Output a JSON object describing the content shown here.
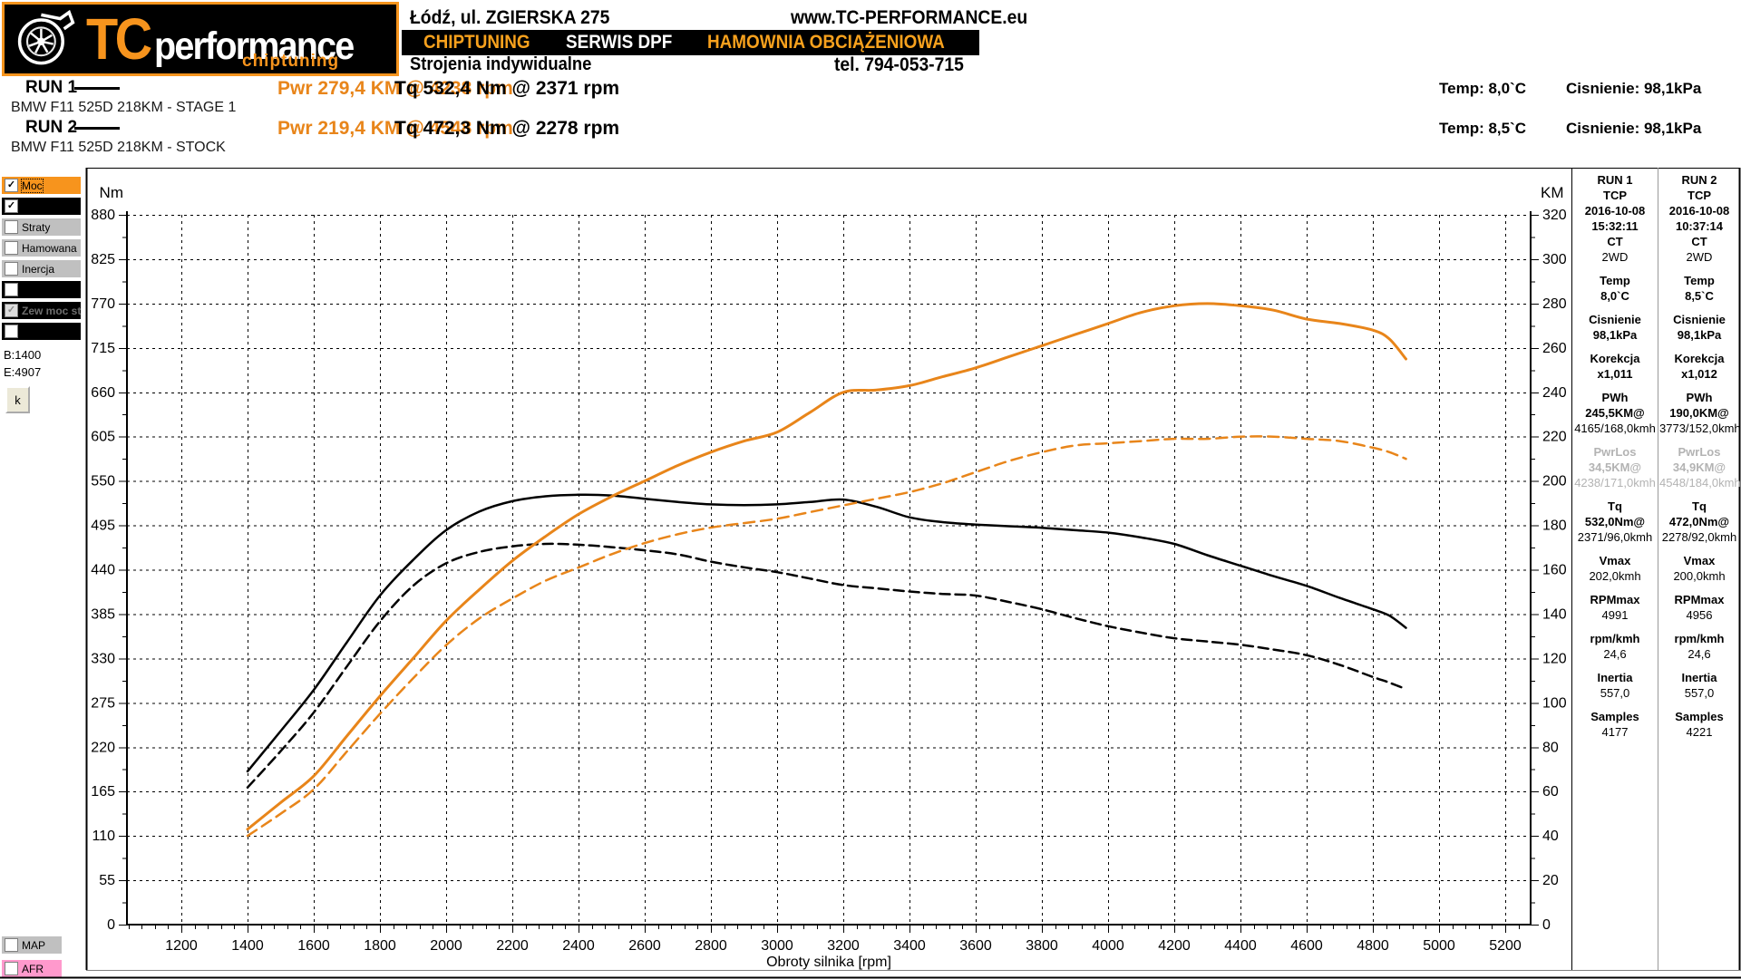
{
  "header": {
    "address": "Łódź, ul. ZGIERSKA 275",
    "website": "www.TC-PERFORMANCE.eu",
    "banner_items": [
      "CHIPTUNING",
      "SERWIS DPF",
      "HAMOWNIA OBCIĄŻENIOWA"
    ],
    "banner_colors": [
      "#f7a11d",
      "#ffffff",
      "#f7a11d"
    ],
    "tagline": "Strojenia indywidualne",
    "phone": "tel. 794-053-715",
    "logo": {
      "tc": "TC",
      "performance": "performance",
      "chiptuning": "chiptuning"
    }
  },
  "runs": [
    {
      "name": "RUN 1",
      "pwr": "Pwr  279,4 KM @ 4238 rpm",
      "tq": "Tq 532,4 Nm @ 2371 rpm",
      "temp": "Temp: 8,0`C",
      "pressure": "Cisnienie: 98,1kPa",
      "model": "BMW F11 525D 218KM - STAGE 1"
    },
    {
      "name": "RUN 2",
      "pwr": "Pwr  219,4 KM @ 4548 rpm",
      "tq": "Tq 472,3 Nm @ 2278 rpm",
      "temp": "Temp: 8,5`C",
      "pressure": "Cisnienie: 98,1kPa",
      "model": "BMW F11 525D 218KM - STOCK"
    }
  ],
  "sidebar": {
    "rows": [
      {
        "label": "Moc",
        "bg": "#f7941d",
        "fg": "#000",
        "checked": true,
        "disabled": false,
        "focus": true,
        "bold": false
      },
      {
        "label": "",
        "bg": "#000000",
        "fg": "#fff",
        "checked": true,
        "disabled": false,
        "focus": false,
        "bold": false
      },
      {
        "label": "Straty",
        "bg": "#c0c0c0",
        "fg": "#000",
        "checked": false,
        "disabled": false,
        "focus": false,
        "bold": false
      },
      {
        "label": "Hamowana",
        "bg": "#c0c0c0",
        "fg": "#000",
        "checked": false,
        "disabled": false,
        "focus": false,
        "bold": false
      },
      {
        "label": "Inercja",
        "bg": "#c0c0c0",
        "fg": "#000",
        "checked": false,
        "disabled": false,
        "focus": false,
        "bold": false
      },
      {
        "label": "",
        "bg": "#000000",
        "fg": "#fff",
        "checked": false,
        "disabled": false,
        "focus": false,
        "bold": false
      },
      {
        "label": "Zew moc str",
        "bg": "#000000",
        "fg": "#6e6e6e",
        "checked": true,
        "disabled": true,
        "focus": false,
        "bold": true
      },
      {
        "label": "",
        "bg": "#000000",
        "fg": "#fff",
        "checked": false,
        "disabled": false,
        "focus": false,
        "bold": false
      }
    ],
    "begin_label": "B:1400",
    "end_label": "E:4907",
    "k_button": "k",
    "bottom_rows": [
      {
        "label": "MAP",
        "bg": "#c0c0c0",
        "fg": "#000",
        "checked": false
      },
      {
        "label": "AFR",
        "bg": "#ff99cc",
        "fg": "#000",
        "checked": false
      }
    ]
  },
  "panel": {
    "columns": [
      {
        "lines": [
          {
            "t": "RUN 1",
            "b": 1
          },
          {
            "t": "TCP",
            "b": 1
          },
          {
            "t": "2016-10-08",
            "b": 1
          },
          {
            "t": "15:32:11",
            "b": 1
          },
          {
            "t": "CT",
            "b": 1
          },
          {
            "t": "2WD"
          },
          {
            "t": "Temp",
            "b": 1,
            "gap": 1
          },
          {
            "t": "8,0`C",
            "b": 1
          },
          {
            "t": "Cisnienie",
            "b": 1,
            "gap": 1
          },
          {
            "t": "98,1kPa",
            "b": 1
          },
          {
            "t": "Korekcja",
            "b": 1,
            "gap": 1
          },
          {
            "t": "x1,011",
            "b": 1
          },
          {
            "t": "PWh",
            "b": 1,
            "gap": 1
          },
          {
            "t": "245,5KM@",
            "b": 1
          },
          {
            "t": "4165/168,0kmh"
          },
          {
            "t": "PwrLos",
            "b": 1,
            "g": 1,
            "gap": 1
          },
          {
            "t": "34,5KM@",
            "b": 1,
            "g": 1
          },
          {
            "t": "4238/171,0kmh",
            "g": 1
          },
          {
            "t": "Tq",
            "b": 1,
            "gap": 1
          },
          {
            "t": "532,0Nm@",
            "b": 1
          },
          {
            "t": "2371/96,0kmh"
          },
          {
            "t": "Vmax",
            "b": 1,
            "gap": 1
          },
          {
            "t": "202,0kmh"
          },
          {
            "t": "RPMmax",
            "b": 1,
            "gap": 1
          },
          {
            "t": "4991"
          },
          {
            "t": "rpm/kmh",
            "b": 1,
            "gap": 1
          },
          {
            "t": "24,6"
          },
          {
            "t": "Inertia",
            "b": 1,
            "gap": 1
          },
          {
            "t": "557,0"
          },
          {
            "t": "Samples",
            "b": 1,
            "gap": 1
          },
          {
            "t": "4177"
          }
        ]
      },
      {
        "lines": [
          {
            "t": "RUN 2",
            "b": 1
          },
          {
            "t": "TCP",
            "b": 1
          },
          {
            "t": "2016-10-08",
            "b": 1
          },
          {
            "t": "10:37:14",
            "b": 1
          },
          {
            "t": "CT",
            "b": 1
          },
          {
            "t": "2WD"
          },
          {
            "t": "Temp",
            "b": 1,
            "gap": 1
          },
          {
            "t": "8,5`C",
            "b": 1
          },
          {
            "t": "Cisnienie",
            "b": 1,
            "gap": 1
          },
          {
            "t": "98,1kPa",
            "b": 1
          },
          {
            "t": "Korekcja",
            "b": 1,
            "gap": 1
          },
          {
            "t": "x1,012",
            "b": 1
          },
          {
            "t": "PWh",
            "b": 1,
            "gap": 1
          },
          {
            "t": "190,0KM@",
            "b": 1
          },
          {
            "t": "3773/152,0kmh"
          },
          {
            "t": "PwrLos",
            "b": 1,
            "g": 1,
            "gap": 1
          },
          {
            "t": "34,9KM@",
            "b": 1,
            "g": 1
          },
          {
            "t": "4548/184,0kmh",
            "g": 1
          },
          {
            "t": "Tq",
            "b": 1,
            "gap": 1
          },
          {
            "t": "472,0Nm@",
            "b": 1
          },
          {
            "t": "2278/92,0kmh"
          },
          {
            "t": "Vmax",
            "b": 1,
            "gap": 1
          },
          {
            "t": "200,0kmh"
          },
          {
            "t": "RPMmax",
            "b": 1,
            "gap": 1
          },
          {
            "t": "4956"
          },
          {
            "t": "rpm/kmh",
            "b": 1,
            "gap": 1
          },
          {
            "t": "24,6"
          },
          {
            "t": "Inertia",
            "b": 1,
            "gap": 1
          },
          {
            "t": "557,0"
          },
          {
            "t": "Samples",
            "b": 1,
            "gap": 1
          },
          {
            "t": "4221"
          }
        ]
      }
    ]
  },
  "chart_data": {
    "type": "line",
    "xlabel": "Obroty silnika [rpm]",
    "y_left_label": "Nm",
    "y_right_label": "KM",
    "x_ticks": [
      1200,
      1400,
      1600,
      1800,
      2000,
      2200,
      2400,
      2600,
      2800,
      3000,
      3200,
      3400,
      3600,
      3800,
      4000,
      4200,
      4400,
      4600,
      4800,
      5000,
      5200
    ],
    "nm_ticks": [
      0,
      55,
      110,
      165,
      220,
      275,
      330,
      385,
      440,
      495,
      550,
      605,
      660,
      715,
      770,
      825,
      880
    ],
    "km_ticks": [
      0,
      20,
      40,
      60,
      80,
      100,
      120,
      140,
      160,
      180,
      200,
      220,
      240,
      260,
      280,
      300,
      320
    ],
    "nm_range": [
      0,
      880
    ],
    "km_range": [
      0,
      320
    ],
    "grid": true,
    "series": [
      {
        "name": "RUN 1 Moc (KM)",
        "axis": "km",
        "color": "#e8851a",
        "dash": "",
        "width": 3,
        "points": [
          [
            1400,
            43
          ],
          [
            1500,
            55
          ],
          [
            1600,
            67
          ],
          [
            1700,
            85
          ],
          [
            1800,
            103
          ],
          [
            1900,
            120
          ],
          [
            2000,
            137
          ],
          [
            2100,
            151
          ],
          [
            2200,
            164
          ],
          [
            2300,
            175
          ],
          [
            2400,
            185
          ],
          [
            2500,
            193
          ],
          [
            2600,
            200
          ],
          [
            2700,
            207
          ],
          [
            2800,
            213
          ],
          [
            2900,
            218
          ],
          [
            3000,
            222
          ],
          [
            3100,
            231
          ],
          [
            3200,
            240
          ],
          [
            3300,
            241
          ],
          [
            3400,
            243
          ],
          [
            3500,
            247
          ],
          [
            3600,
            251
          ],
          [
            3700,
            256
          ],
          [
            3800,
            261
          ],
          [
            3900,
            266
          ],
          [
            4000,
            271
          ],
          [
            4100,
            276
          ],
          [
            4200,
            279
          ],
          [
            4300,
            280
          ],
          [
            4400,
            279
          ],
          [
            4500,
            277
          ],
          [
            4600,
            273
          ],
          [
            4700,
            271
          ],
          [
            4800,
            268
          ],
          [
            4850,
            264
          ],
          [
            4900,
            255
          ]
        ]
      },
      {
        "name": "RUN 2 Moc (KM)",
        "axis": "km",
        "color": "#e8851a",
        "dash": "12 7",
        "width": 2.5,
        "points": [
          [
            1400,
            40
          ],
          [
            1500,
            50
          ],
          [
            1600,
            61
          ],
          [
            1700,
            78
          ],
          [
            1800,
            95
          ],
          [
            1900,
            111
          ],
          [
            2000,
            126
          ],
          [
            2100,
            138
          ],
          [
            2200,
            147
          ],
          [
            2300,
            155
          ],
          [
            2400,
            161
          ],
          [
            2500,
            167
          ],
          [
            2600,
            172
          ],
          [
            2700,
            176
          ],
          [
            2800,
            179
          ],
          [
            2900,
            181
          ],
          [
            3000,
            183
          ],
          [
            3100,
            186
          ],
          [
            3200,
            189
          ],
          [
            3300,
            192
          ],
          [
            3400,
            195
          ],
          [
            3500,
            199
          ],
          [
            3600,
            204
          ],
          [
            3700,
            209
          ],
          [
            3800,
            213
          ],
          [
            3900,
            216
          ],
          [
            4000,
            217
          ],
          [
            4100,
            218
          ],
          [
            4200,
            219
          ],
          [
            4300,
            219
          ],
          [
            4400,
            220
          ],
          [
            4500,
            220
          ],
          [
            4600,
            219
          ],
          [
            4700,
            218
          ],
          [
            4800,
            215
          ],
          [
            4850,
            213
          ],
          [
            4900,
            210
          ]
        ]
      },
      {
        "name": "RUN 1 Moment (Nm)",
        "axis": "nm",
        "color": "#000000",
        "dash": "",
        "width": 2.5,
        "points": [
          [
            1400,
            190
          ],
          [
            1500,
            240
          ],
          [
            1600,
            291
          ],
          [
            1700,
            350
          ],
          [
            1800,
            408
          ],
          [
            1900,
            452
          ],
          [
            2000,
            489
          ],
          [
            2100,
            512
          ],
          [
            2200,
            525
          ],
          [
            2300,
            531
          ],
          [
            2400,
            533
          ],
          [
            2500,
            532
          ],
          [
            2600,
            528
          ],
          [
            2700,
            524
          ],
          [
            2800,
            521
          ],
          [
            2900,
            520
          ],
          [
            3000,
            521
          ],
          [
            3100,
            524
          ],
          [
            3200,
            527
          ],
          [
            3300,
            518
          ],
          [
            3400,
            505
          ],
          [
            3500,
            499
          ],
          [
            3600,
            496
          ],
          [
            3700,
            494
          ],
          [
            3800,
            492
          ],
          [
            3900,
            489
          ],
          [
            4000,
            486
          ],
          [
            4100,
            480
          ],
          [
            4200,
            472
          ],
          [
            4300,
            458
          ],
          [
            4400,
            445
          ],
          [
            4500,
            432
          ],
          [
            4600,
            420
          ],
          [
            4700,
            405
          ],
          [
            4800,
            391
          ],
          [
            4850,
            383
          ],
          [
            4900,
            368
          ]
        ]
      },
      {
        "name": "RUN 2 Moment (Nm)",
        "axis": "nm",
        "color": "#000000",
        "dash": "11 6",
        "width": 2.5,
        "points": [
          [
            1400,
            170
          ],
          [
            1500,
            215
          ],
          [
            1600,
            263
          ],
          [
            1700,
            320
          ],
          [
            1800,
            376
          ],
          [
            1900,
            420
          ],
          [
            2000,
            448
          ],
          [
            2100,
            462
          ],
          [
            2200,
            469
          ],
          [
            2300,
            472
          ],
          [
            2400,
            471
          ],
          [
            2500,
            468
          ],
          [
            2600,
            464
          ],
          [
            2700,
            459
          ],
          [
            2800,
            450
          ],
          [
            2900,
            443
          ],
          [
            3000,
            437
          ],
          [
            3100,
            429
          ],
          [
            3200,
            421
          ],
          [
            3300,
            417
          ],
          [
            3400,
            413
          ],
          [
            3500,
            410
          ],
          [
            3600,
            408
          ],
          [
            3700,
            400
          ],
          [
            3800,
            391
          ],
          [
            3900,
            380
          ],
          [
            4000,
            370
          ],
          [
            4100,
            362
          ],
          [
            4200,
            355
          ],
          [
            4300,
            351
          ],
          [
            4400,
            347
          ],
          [
            4500,
            341
          ],
          [
            4600,
            334
          ],
          [
            4700,
            322
          ],
          [
            4800,
            307
          ],
          [
            4850,
            300
          ],
          [
            4900,
            292
          ]
        ]
      }
    ]
  }
}
